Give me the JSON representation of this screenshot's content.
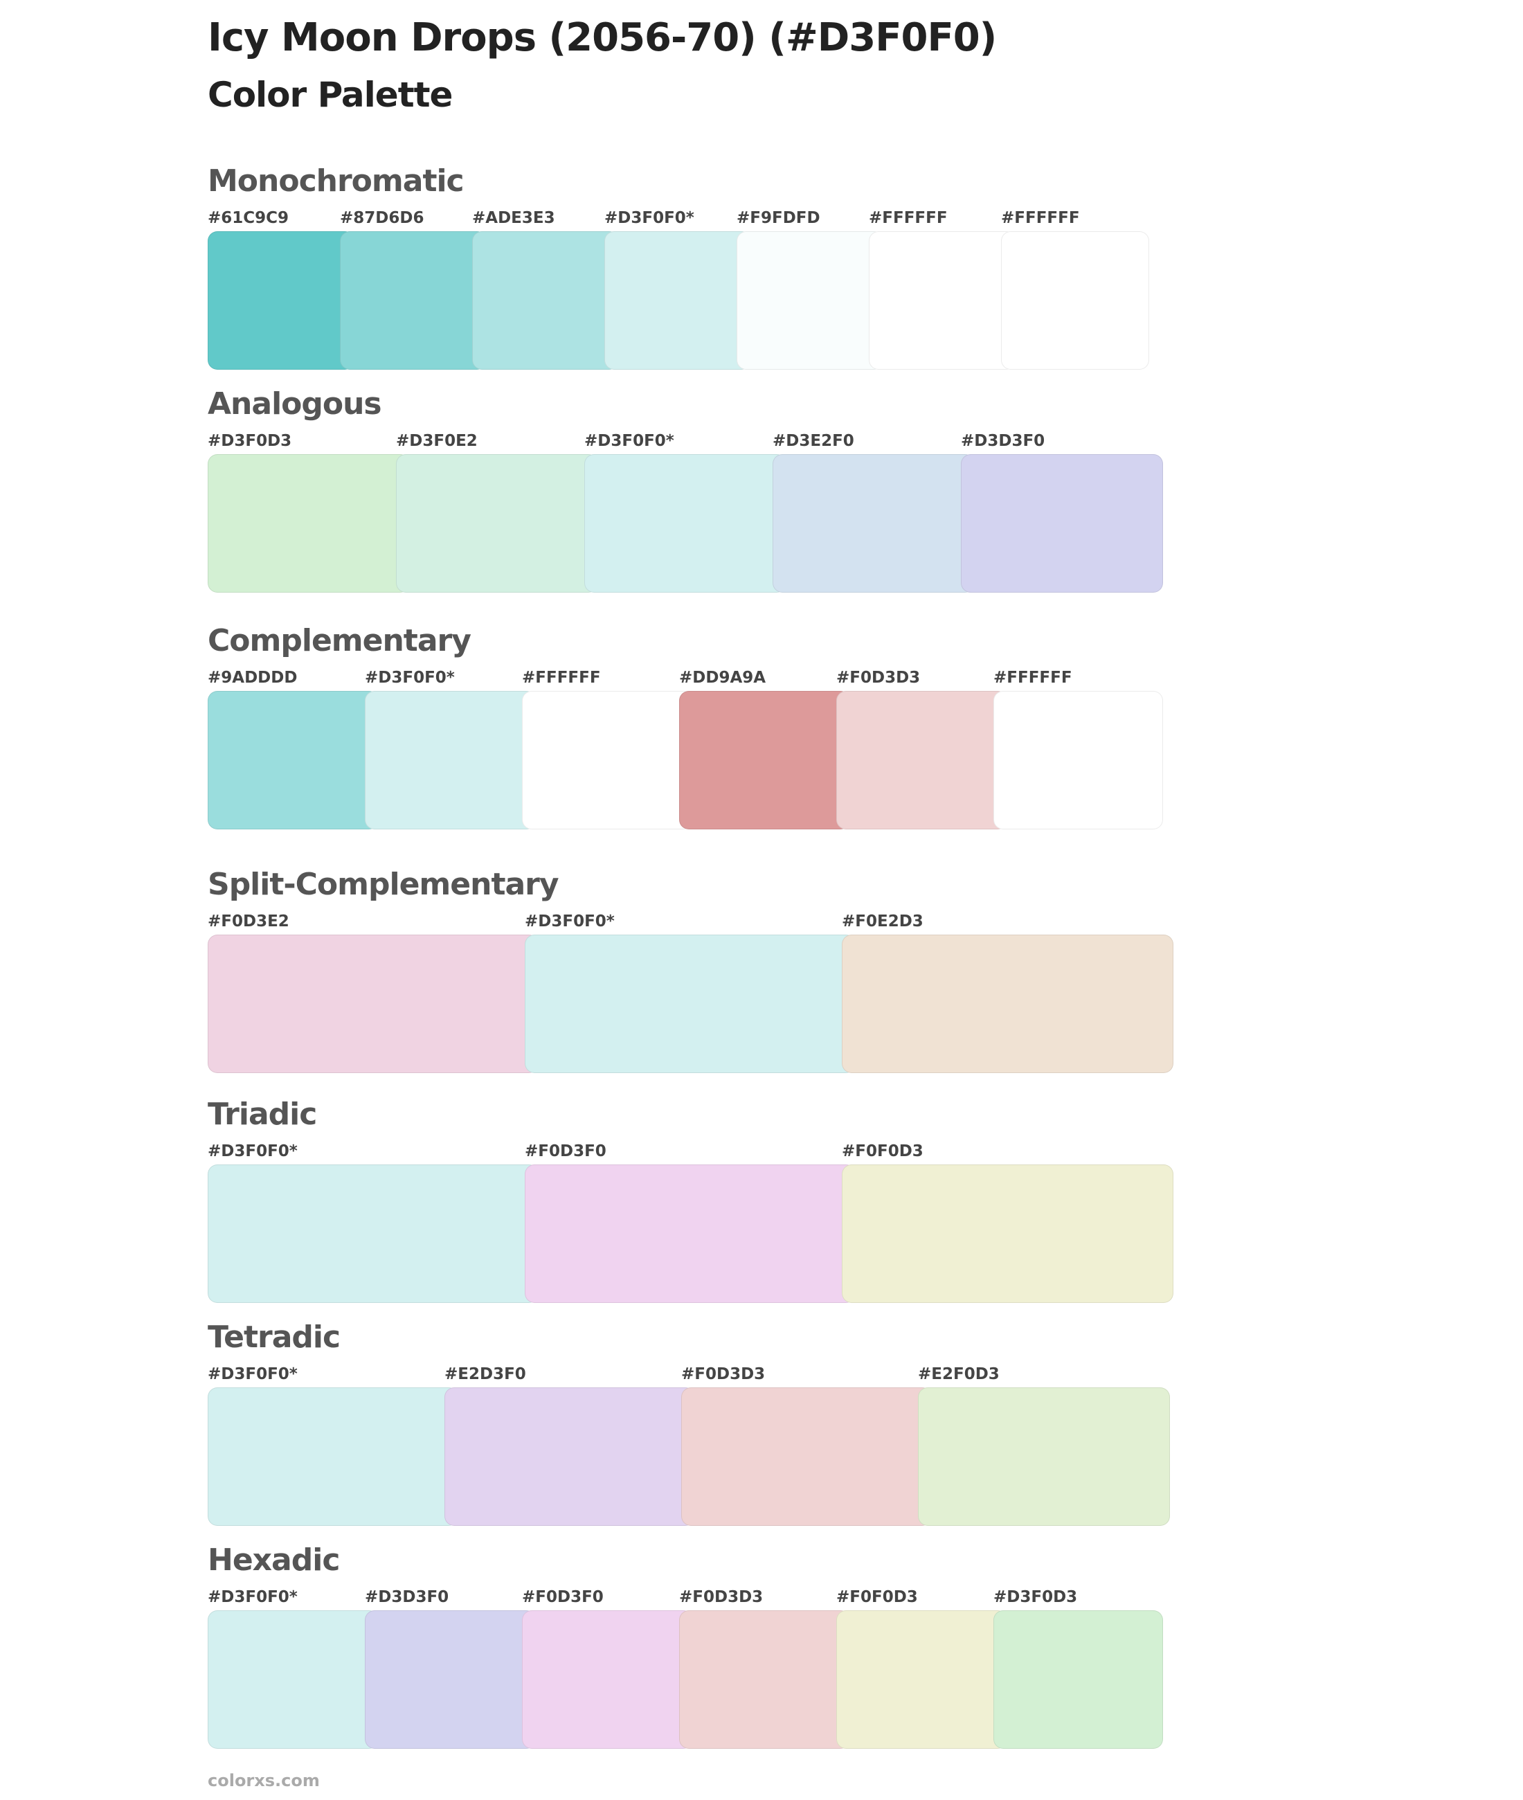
{
  "title": "Icy Moon Drops (2056-70) (#D3F0F0)",
  "subtitle": "Color Palette",
  "footer": "colorxs.com",
  "sections": [
    {
      "name": "Monochromatic",
      "swatches": [
        {
          "label": "#61C9C9",
          "color": "#61C9C9"
        },
        {
          "label": "#87D6D6",
          "color": "#87D6D6"
        },
        {
          "label": "#ADE3E3",
          "color": "#ADE3E3"
        },
        {
          "label": "#D3F0F0*",
          "color": "#D3F0F0"
        },
        {
          "label": "#F9FDFD",
          "color": "#F9FDFD"
        },
        {
          "label": "#FFFFFF",
          "color": "#FFFFFF"
        },
        {
          "label": "#FFFFFF",
          "color": "#FFFFFF"
        }
      ]
    },
    {
      "name": "Analogous",
      "swatches": [
        {
          "label": "#D3F0D3",
          "color": "#D3F0D3"
        },
        {
          "label": "#D3F0E2",
          "color": "#D3F0E2"
        },
        {
          "label": "#D3F0F0*",
          "color": "#D3F0F0"
        },
        {
          "label": "#D3E2F0",
          "color": "#D3E2F0"
        },
        {
          "label": "#D3D3F0",
          "color": "#D3D3F0"
        }
      ]
    },
    {
      "name": "Complementary",
      "swatches": [
        {
          "label": "#9ADDDD",
          "color": "#9ADDDD"
        },
        {
          "label": "#D3F0F0*",
          "color": "#D3F0F0"
        },
        {
          "label": "#FFFFFF",
          "color": "#FFFFFF"
        },
        {
          "label": "#DD9A9A",
          "color": "#DD9A9A"
        },
        {
          "label": "#F0D3D3",
          "color": "#F0D3D3"
        },
        {
          "label": "#FFFFFF",
          "color": "#FFFFFF"
        }
      ]
    },
    {
      "name": "Split-Complementary",
      "swatches": [
        {
          "label": "#F0D3E2",
          "color": "#F0D3E2"
        },
        {
          "label": "#D3F0F0*",
          "color": "#D3F0F0"
        },
        {
          "label": "#F0E2D3",
          "color": "#F0E2D3"
        }
      ]
    },
    {
      "name": "Triadic",
      "swatches": [
        {
          "label": "#D3F0F0*",
          "color": "#D3F0F0"
        },
        {
          "label": "#F0D3F0",
          "color": "#F0D3F0"
        },
        {
          "label": "#F0F0D3",
          "color": "#F0F0D3"
        }
      ]
    },
    {
      "name": "Tetradic",
      "swatches": [
        {
          "label": "#D3F0F0*",
          "color": "#D3F0F0"
        },
        {
          "label": "#E2D3F0",
          "color": "#E2D3F0"
        },
        {
          "label": "#F0D3D3",
          "color": "#F0D3D3"
        },
        {
          "label": "#E2F0D3",
          "color": "#E2F0D3"
        }
      ]
    },
    {
      "name": "Hexadic",
      "swatches": [
        {
          "label": "#D3F0F0*",
          "color": "#D3F0F0"
        },
        {
          "label": "#D3D3F0",
          "color": "#D3D3F0"
        },
        {
          "label": "#F0D3F0",
          "color": "#F0D3F0"
        },
        {
          "label": "#F0D3D3",
          "color": "#F0D3D3"
        },
        {
          "label": "#F0F0D3",
          "color": "#F0F0D3"
        },
        {
          "label": "#D3F0D3",
          "color": "#D3F0D3"
        }
      ]
    }
  ]
}
